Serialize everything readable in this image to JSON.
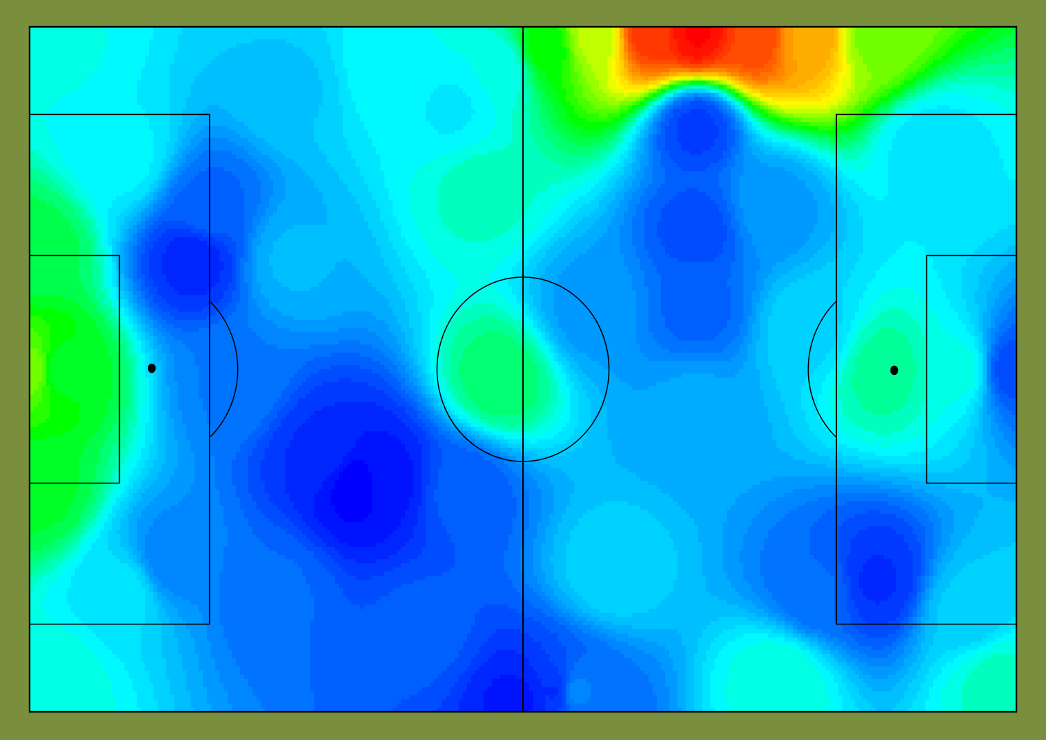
{
  "chart_data": {
    "type": "heatmap",
    "title": "",
    "xlabel": "",
    "ylabel": "",
    "grid": false,
    "legend": "none",
    "x_range": [
      0,
      105
    ],
    "y_range": [
      0,
      68
    ],
    "colormap": [
      "#0000ff",
      "#0080ff",
      "#00ffff",
      "#00ff00",
      "#ffff00",
      "#ff8000",
      "#ff0000"
    ],
    "value_range": [
      0,
      1
    ],
    "hotspots": [
      {
        "x": 0.5,
        "y": 34,
        "value": 0.58
      },
      {
        "x": 3,
        "y": 34,
        "value": 0.47
      },
      {
        "x": 1,
        "y": 22,
        "value": 0.47
      },
      {
        "x": 1,
        "y": 46,
        "value": 0.45
      },
      {
        "x": 17.5,
        "y": 45,
        "value": 0.05
      },
      {
        "x": 19,
        "y": 50,
        "value": 0.13
      },
      {
        "x": 22,
        "y": 33,
        "value": 0.16
      },
      {
        "x": 15,
        "y": 15,
        "value": 0.17
      },
      {
        "x": 26,
        "y": 12,
        "value": 0.14
      },
      {
        "x": 35,
        "y": 22.5,
        "value": 0.0
      },
      {
        "x": 38,
        "y": 23,
        "value": 0.03
      },
      {
        "x": 31,
        "y": 26,
        "value": 0.06
      },
      {
        "x": 46,
        "y": 22,
        "value": 0.12
      },
      {
        "x": 42,
        "y": 8,
        "value": 0.12
      },
      {
        "x": 52,
        "y": 1,
        "value": 0.03
      },
      {
        "x": 56,
        "y": 2,
        "value": 0.06
      },
      {
        "x": 50,
        "y": 33,
        "value": 0.43
      },
      {
        "x": 48,
        "y": 52,
        "value": 0.37
      },
      {
        "x": 50,
        "y": 64,
        "value": 0.34
      },
      {
        "x": 45,
        "y": 60,
        "value": 0.31
      },
      {
        "x": 71,
        "y": 67.5,
        "value": 0.99
      },
      {
        "x": 66,
        "y": 67.5,
        "value": 0.93
      },
      {
        "x": 77,
        "y": 67,
        "value": 0.91
      },
      {
        "x": 83,
        "y": 67,
        "value": 0.78
      },
      {
        "x": 90,
        "y": 67,
        "value": 0.58
      },
      {
        "x": 60,
        "y": 67,
        "value": 0.62
      },
      {
        "x": 55,
        "y": 66,
        "value": 0.5
      },
      {
        "x": 71,
        "y": 58,
        "value": 0.08
      },
      {
        "x": 71,
        "y": 48,
        "value": 0.1
      },
      {
        "x": 71,
        "y": 40,
        "value": 0.13
      },
      {
        "x": 71,
        "y": 30,
        "value": 0.22
      },
      {
        "x": 79,
        "y": 50,
        "value": 0.2
      },
      {
        "x": 91,
        "y": 34,
        "value": 0.4
      },
      {
        "x": 99,
        "y": 34,
        "value": 0.35
      },
      {
        "x": 104.5,
        "y": 34,
        "value": 0.1
      },
      {
        "x": 90,
        "y": 13,
        "value": 0.06
      },
      {
        "x": 84,
        "y": 12,
        "value": 0.14
      },
      {
        "x": 100,
        "y": 10,
        "value": 0.27
      },
      {
        "x": 62,
        "y": 14,
        "value": 0.28
      },
      {
        "x": 58,
        "y": 2,
        "value": 0.17
      },
      {
        "x": 80,
        "y": 3,
        "value": 0.36
      },
      {
        "x": 103,
        "y": 3,
        "value": 0.37
      },
      {
        "x": 3,
        "y": 3,
        "value": 0.35
      },
      {
        "x": 3,
        "y": 66,
        "value": 0.34
      },
      {
        "x": 28,
        "y": 62,
        "value": 0.26
      },
      {
        "x": 38,
        "y": 64,
        "value": 0.33
      },
      {
        "x": 96,
        "y": 56,
        "value": 0.3
      },
      {
        "x": 60,
        "y": 40,
        "value": 0.2
      },
      {
        "x": 83,
        "y": 38,
        "value": 0.28
      },
      {
        "x": 28,
        "y": 45,
        "value": 0.24
      },
      {
        "x": 10,
        "y": 55,
        "value": 0.32
      },
      {
        "x": 10,
        "y": 12,
        "value": 0.3
      }
    ]
  },
  "pitch": {
    "field_color": "#7a8f3e",
    "line_color": "#000000",
    "penalty_spots": [
      "left",
      "right"
    ],
    "center_circle": true
  }
}
